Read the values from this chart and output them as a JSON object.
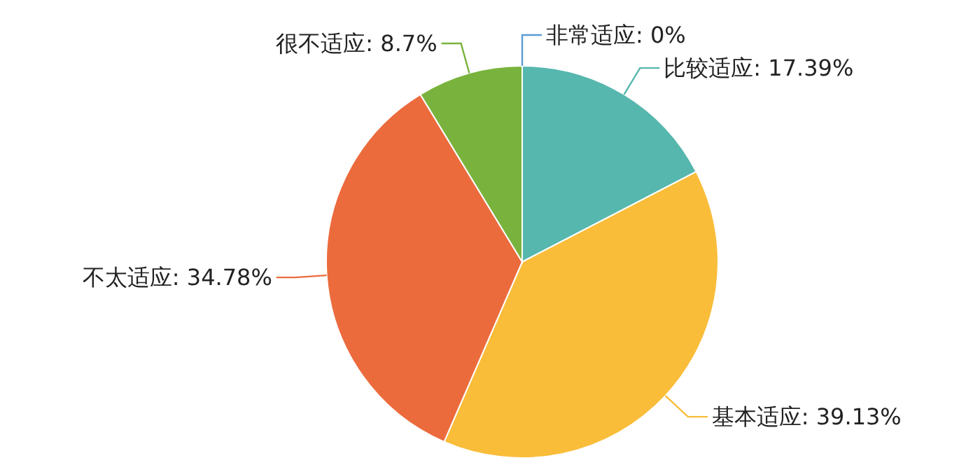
{
  "chart_data": {
    "type": "pie",
    "categories": [
      "非常适应",
      "比较适应",
      "基本适应",
      "不太适应",
      "很不适应"
    ],
    "values": [
      0,
      17.39,
      39.13,
      34.78,
      8.7
    ],
    "value_labels": [
      ": 0%",
      ": 17.39%",
      ": 39.13%",
      ": 34.78%",
      ": 8.7%"
    ],
    "colors": [
      "#5b9bd5",
      "#56b7ae",
      "#f9bd3a",
      "#ec6b3d",
      "#79b33d"
    ]
  }
}
